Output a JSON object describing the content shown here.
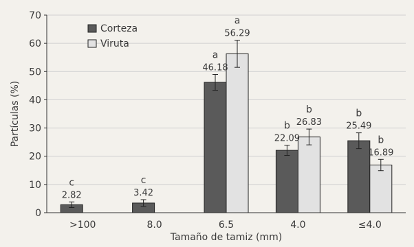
{
  "chart_data": {
    "type": "bar",
    "xlabel": "Tamaño de tamiz (mm)",
    "ylabel": "Partículas (%)",
    "ylim": [
      0,
      70
    ],
    "yticks": [
      "0",
      "10",
      "20",
      "30",
      "40",
      "50",
      "60",
      "70"
    ],
    "categories": [
      ">100",
      "8.0",
      "6.5",
      "4.0",
      "≤4.0"
    ],
    "legend_position": "top-left",
    "series": [
      {
        "name": "Corteza",
        "color": "#5a5a5a",
        "values": [
          2.82,
          3.42,
          46.18,
          22.09,
          25.49
        ],
        "errors": [
          1.0,
          1.2,
          2.8,
          1.8,
          2.8
        ],
        "value_labels": [
          "2.82",
          "3.42",
          "46.18",
          "22.09",
          "25.49"
        ],
        "letters": [
          "c",
          "c",
          "a",
          "b",
          "b"
        ]
      },
      {
        "name": "Viruta",
        "color": "#e2e2e2",
        "values": [
          null,
          null,
          56.29,
          26.83,
          16.89
        ],
        "errors": [
          null,
          null,
          4.8,
          2.8,
          2.0
        ],
        "value_labels": [
          "",
          "",
          "56.29",
          "26.83",
          "16.89"
        ],
        "letters": [
          "",
          "",
          "a",
          "b",
          "b"
        ]
      }
    ]
  }
}
